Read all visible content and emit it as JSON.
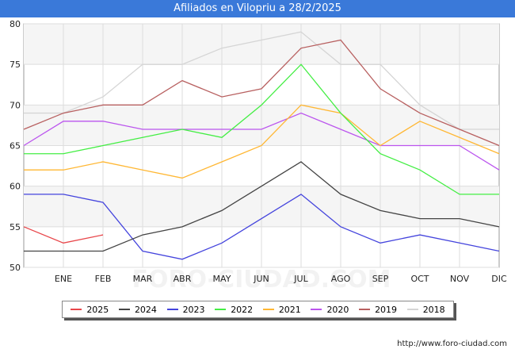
{
  "header": {
    "title": "Afiliados en Vilopriu a 28/2/2025"
  },
  "watermark": "FORO-CIUDAD.COM",
  "footer": {
    "url": "http://www.foro-ciudad.com"
  },
  "chart_data": {
    "type": "line",
    "title": "Afiliados en Vilopriu a 28/2/2025",
    "categories": [
      "",
      "ENE",
      "FEB",
      "MAR",
      "ABR",
      "MAY",
      "JUN",
      "JUL",
      "AGO",
      "SEP",
      "OCT",
      "NOV",
      "DIC"
    ],
    "ylim": [
      50,
      80
    ],
    "yticks": [
      50,
      55,
      60,
      65,
      70,
      75,
      80
    ],
    "grid": true,
    "legend_position": "bottom",
    "series": [
      {
        "name": "2025",
        "color": "#e8464a",
        "values": [
          55,
          53,
          54,
          null,
          null,
          null,
          null,
          null,
          null,
          null,
          null,
          null,
          null
        ]
      },
      {
        "name": "2024",
        "color": "#444444",
        "values": [
          52,
          52,
          52,
          54,
          55,
          57,
          60,
          63,
          59,
          57,
          56,
          56,
          55
        ]
      },
      {
        "name": "2023",
        "color": "#4444dd",
        "values": [
          59,
          59,
          58,
          52,
          51,
          53,
          56,
          59,
          55,
          53,
          54,
          53,
          52
        ]
      },
      {
        "name": "2022",
        "color": "#44ee44",
        "values": [
          64,
          64,
          65,
          66,
          67,
          66,
          70,
          75,
          69,
          64,
          62,
          59,
          59
        ]
      },
      {
        "name": "2021",
        "color": "#ffb733",
        "values": [
          62,
          62,
          63,
          62,
          61,
          63,
          65,
          70,
          69,
          65,
          68,
          66,
          64
        ]
      },
      {
        "name": "2020",
        "color": "#bb55ee",
        "values": [
          65,
          68,
          68,
          67,
          67,
          67,
          67,
          69,
          67,
          65,
          65,
          65,
          62
        ]
      },
      {
        "name": "2019",
        "color": "#b86060",
        "values": [
          67,
          69,
          70,
          70,
          73,
          71,
          72,
          77,
          78,
          72,
          69,
          67,
          65
        ]
      },
      {
        "name": "2018",
        "color": "#d5d5d5",
        "values": [
          69,
          69,
          71,
          75,
          75,
          77,
          78,
          79,
          75,
          75,
          70,
          67,
          67
        ]
      }
    ]
  }
}
